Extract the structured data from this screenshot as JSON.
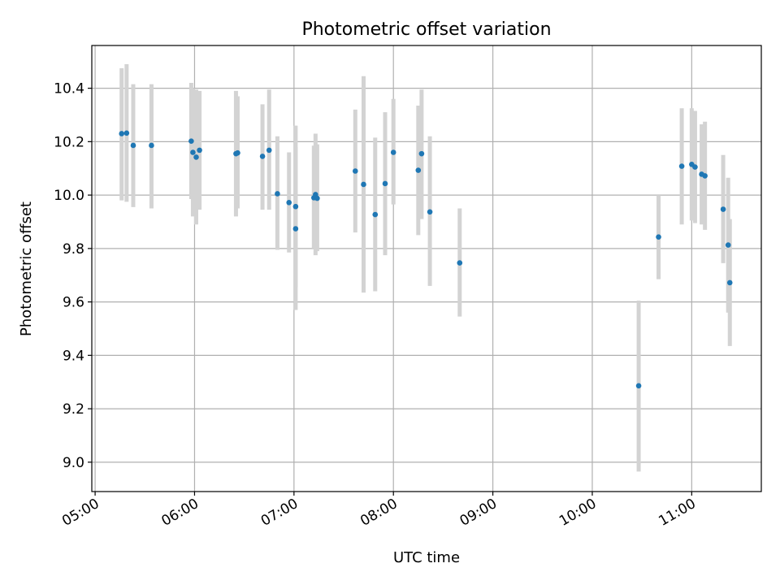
{
  "chart_data": {
    "type": "scatter",
    "title": "Photometric offset variation",
    "xlabel": "UTC time",
    "ylabel": "Photometric offset",
    "x_ticks": [
      "05:00",
      "06:00",
      "07:00",
      "08:00",
      "09:00",
      "10:00",
      "11:00"
    ],
    "y_ticks": [
      "9.0",
      "9.2",
      "9.4",
      "9.6",
      "9.8",
      "10.0",
      "10.2",
      "10.4"
    ],
    "xlim": [
      "04:58",
      "11:42"
    ],
    "ylim": [
      8.89,
      10.56
    ],
    "grid": true,
    "colors": {
      "marker": "#1f77b4",
      "errorbar": "#d3d3d3"
    },
    "points": [
      {
        "t": "05:16",
        "y": 10.23,
        "lo": 9.98,
        "hi": 10.475
      },
      {
        "t": "05:19",
        "y": 10.232,
        "lo": 9.975,
        "hi": 10.49
      },
      {
        "t": "05:23",
        "y": 10.186,
        "lo": 9.955,
        "hi": 10.415
      },
      {
        "t": "05:34",
        "y": 10.186,
        "lo": 9.95,
        "hi": 10.415
      },
      {
        "t": "05:58",
        "y": 10.202,
        "lo": 9.985,
        "hi": 10.42
      },
      {
        "t": "05:59",
        "y": 10.16,
        "lo": 9.92,
        "hi": 10.4
      },
      {
        "t": "06:01",
        "y": 10.142,
        "lo": 9.89,
        "hi": 10.395
      },
      {
        "t": "06:03",
        "y": 10.168,
        "lo": 9.945,
        "hi": 10.39
      },
      {
        "t": "06:25",
        "y": 10.155,
        "lo": 9.92,
        "hi": 10.39
      },
      {
        "t": "06:26",
        "y": 10.158,
        "lo": 9.95,
        "hi": 10.37
      },
      {
        "t": "06:41",
        "y": 10.145,
        "lo": 9.945,
        "hi": 10.34
      },
      {
        "t": "06:45",
        "y": 10.168,
        "lo": 9.945,
        "hi": 10.395
      },
      {
        "t": "06:50",
        "y": 10.005,
        "lo": 9.795,
        "hi": 10.22
      },
      {
        "t": "06:57",
        "y": 9.972,
        "lo": 9.785,
        "hi": 10.16
      },
      {
        "t": "07:01",
        "y": 9.874,
        "lo": 9.57,
        "hi": 10.18
      },
      {
        "t": "07:01",
        "y": 9.957,
        "lo": 9.655,
        "hi": 10.26
      },
      {
        "t": "07:12",
        "y": 9.99,
        "lo": 9.8,
        "hi": 10.185
      },
      {
        "t": "07:13",
        "y": 10.002,
        "lo": 9.775,
        "hi": 10.23
      },
      {
        "t": "07:14",
        "y": 9.988,
        "lo": 9.79,
        "hi": 10.19
      },
      {
        "t": "07:37",
        "y": 10.09,
        "lo": 9.86,
        "hi": 10.32
      },
      {
        "t": "07:42",
        "y": 10.04,
        "lo": 9.635,
        "hi": 10.445
      },
      {
        "t": "07:49",
        "y": 9.927,
        "lo": 9.64,
        "hi": 10.215
      },
      {
        "t": "07:55",
        "y": 10.043,
        "lo": 9.775,
        "hi": 10.31
      },
      {
        "t": "08:00",
        "y": 10.16,
        "lo": 9.965,
        "hi": 10.36
      },
      {
        "t": "08:15",
        "y": 10.093,
        "lo": 9.85,
        "hi": 10.335
      },
      {
        "t": "08:17",
        "y": 10.155,
        "lo": 9.91,
        "hi": 10.395
      },
      {
        "t": "08:22",
        "y": 9.937,
        "lo": 9.66,
        "hi": 10.22
      },
      {
        "t": "08:40",
        "y": 9.746,
        "lo": 9.545,
        "hi": 9.95
      },
      {
        "t": "10:28",
        "y": 9.286,
        "lo": 8.965,
        "hi": 9.605
      },
      {
        "t": "10:40",
        "y": 9.843,
        "lo": 9.685,
        "hi": 10.0
      },
      {
        "t": "10:54",
        "y": 10.108,
        "lo": 9.89,
        "hi": 10.325
      },
      {
        "t": "11:00",
        "y": 10.115,
        "lo": 9.905,
        "hi": 10.325
      },
      {
        "t": "11:02",
        "y": 10.105,
        "lo": 9.895,
        "hi": 10.315
      },
      {
        "t": "11:06",
        "y": 10.078,
        "lo": 9.89,
        "hi": 10.265
      },
      {
        "t": "11:08",
        "y": 10.072,
        "lo": 9.87,
        "hi": 10.275
      },
      {
        "t": "11:19",
        "y": 9.947,
        "lo": 9.745,
        "hi": 10.15
      },
      {
        "t": "11:22",
        "y": 9.813,
        "lo": 9.56,
        "hi": 10.065
      },
      {
        "t": "11:23",
        "y": 9.672,
        "lo": 9.435,
        "hi": 9.91
      }
    ]
  }
}
